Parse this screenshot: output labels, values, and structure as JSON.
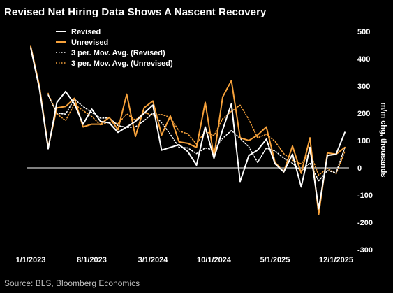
{
  "title": "Revised Net Hiring Data Shows A Nascent Recovery",
  "source": "Source: BLS, Bloomberg Economics",
  "colors": {
    "revised": "#ffffff",
    "unrevised": "#f7a23b",
    "background": "#000000"
  },
  "chart_data": {
    "type": "line",
    "title": "Revised Net Hiring Data Shows A Nascent Recovery",
    "ylabel": "m/m chg, thousands",
    "xlabel": "",
    "ylim": [
      -300,
      500
    ],
    "yticks": [
      500,
      400,
      300,
      200,
      100,
      0,
      -100,
      -200,
      -300
    ],
    "xtick_labels": [
      "1/1/2023",
      "8/1/2023",
      "3/1/2024",
      "10/1/2024",
      "5/1/2025",
      "12/1/2025"
    ],
    "x_start": "1/1/2023",
    "x_end": "12/1/2025",
    "legend_position": "top-left",
    "grid": false,
    "series": [
      {
        "name": "Revised",
        "style": "solid",
        "color": "#ffffff",
        "values": [
          440,
          290,
          70,
          240,
          280,
          235,
          160,
          215,
          170,
          165,
          130,
          150,
          170,
          200,
          230,
          65,
          75,
          85,
          60,
          10,
          150,
          35,
          140,
          235,
          -50,
          45,
          65,
          105,
          15,
          -15,
          50,
          -70,
          75,
          -150,
          45,
          50,
          130
        ]
      },
      {
        "name": "Unrevised",
        "style": "solid",
        "color": "#f7a23b",
        "values": [
          445,
          300,
          75,
          220,
          225,
          255,
          150,
          160,
          160,
          185,
          140,
          270,
          115,
          220,
          245,
          120,
          190,
          95,
          90,
          75,
          240,
          40,
          260,
          320,
          110,
          100,
          120,
          150,
          20,
          -15,
          80,
          -20,
          110,
          -170,
          55,
          50,
          75
        ]
      },
      {
        "name": "3 per. Mov. Avg. (Revised)",
        "style": "dotted",
        "color": "#ffffff",
        "values": [
          null,
          null,
          267,
          200,
          197,
          252,
          225,
          203,
          182,
          183,
          155,
          148,
          150,
          173,
          200,
          165,
          123,
          75,
          73,
          52,
          73,
          65,
          108,
          137,
          108,
          77,
          20,
          72,
          62,
          35,
          17,
          -12,
          18,
          -48,
          -10,
          -18,
          75
        ]
      },
      {
        "name": "3 per. Mov. Avg. (Unrevised)",
        "style": "dotted",
        "color": "#f7a23b",
        "values": [
          null,
          null,
          273,
          198,
          173,
          233,
          210,
          188,
          157,
          168,
          162,
          198,
          175,
          202,
          193,
          195,
          185,
          135,
          125,
          87,
          135,
          118,
          180,
          207,
          230,
          177,
          110,
          123,
          97,
          52,
          28,
          15,
          57,
          -27,
          -2,
          -22,
          60
        ]
      }
    ]
  }
}
